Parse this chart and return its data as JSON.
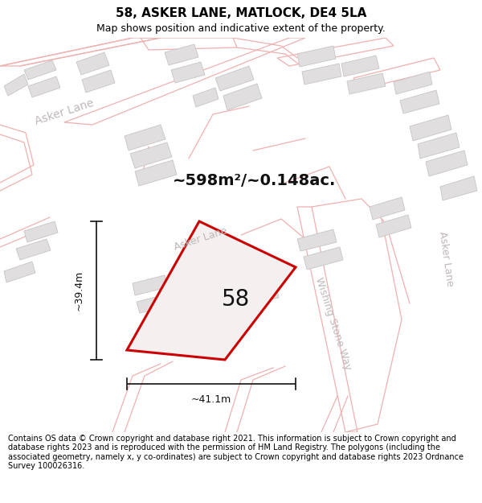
{
  "title": "58, ASKER LANE, MATLOCK, DE4 5LA",
  "subtitle": "Map shows position and indicative extent of the property.",
  "footer": "Contains OS data © Crown copyright and database right 2021. This information is subject to Crown copyright and database rights 2023 and is reproduced with the permission of HM Land Registry. The polygons (including the associated geometry, namely x, y co-ordinates) are subject to Crown copyright and database rights 2023 Ordnance Survey 100026316.",
  "area_label": "~598m²/~0.148ac.",
  "width_label": "~41.1m",
  "height_label": "~39.4m",
  "property_number": "58",
  "map_bg": "#ffffff",
  "road_line_color": "#f0b0b0",
  "building_fill": "#e0dede",
  "building_edge": "#c8c4c4",
  "prop_fill": "#f5f0f0",
  "prop_edge": "#cc0000",
  "prop_lw": 2.2,
  "dim_color": "#111111",
  "road_lbl_color": "#c0b8b8",
  "title_fs": 11,
  "subtitle_fs": 9,
  "footer_fs": 7.0,
  "area_fs": 14,
  "num_fs": 20,
  "dim_fs": 9,
  "road_fs": 9
}
